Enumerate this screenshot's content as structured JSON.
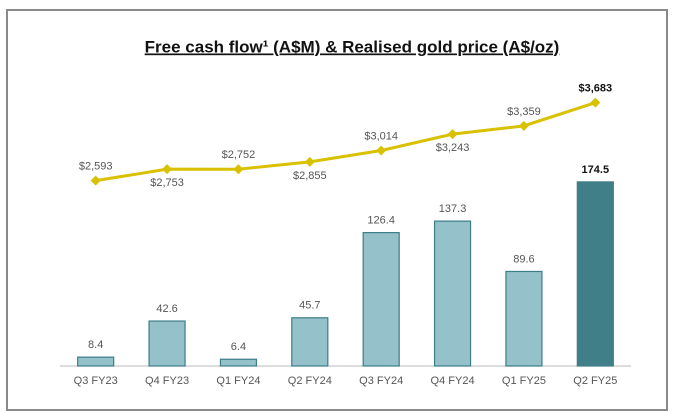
{
  "chart_data": {
    "type": "bar_line",
    "title": "Free cash flow¹ (A$M) & Realised gold price (A$/oz)",
    "categories": [
      "Q3 FY23",
      "Q4 FY23",
      "Q1 FY24",
      "Q2 FY24",
      "Q3 FY24",
      "Q4 FY24",
      "Q1 FY25",
      "Q2 FY25"
    ],
    "series": [
      {
        "type": "bar",
        "colors": [
          "#94c1ca",
          "#94c1ca",
          "#94c1ca",
          "#94c1ca",
          "#94c1ca",
          "#94c1ca",
          "#94c1ca",
          "#407e88"
        ],
        "values": [
          8.4,
          42.6,
          6.4,
          45.7,
          126.4,
          137.3,
          89.6,
          174.5
        ]
      },
      {
        "type": "line",
        "axis": "y2",
        "color": "#d9c100",
        "values": [
          2593,
          2753,
          2752,
          2855,
          3014,
          3243,
          3359,
          3683
        ],
        "value_labels": [
          "$2,593",
          "$2,753",
          "$2,752",
          "$2,855",
          "$3,014",
          "$3,243",
          "$3,359",
          "$3,683"
        ]
      }
    ],
    "ylim": [
      0,
      290
    ],
    "y2lim": [
      0,
      4280
    ]
  }
}
